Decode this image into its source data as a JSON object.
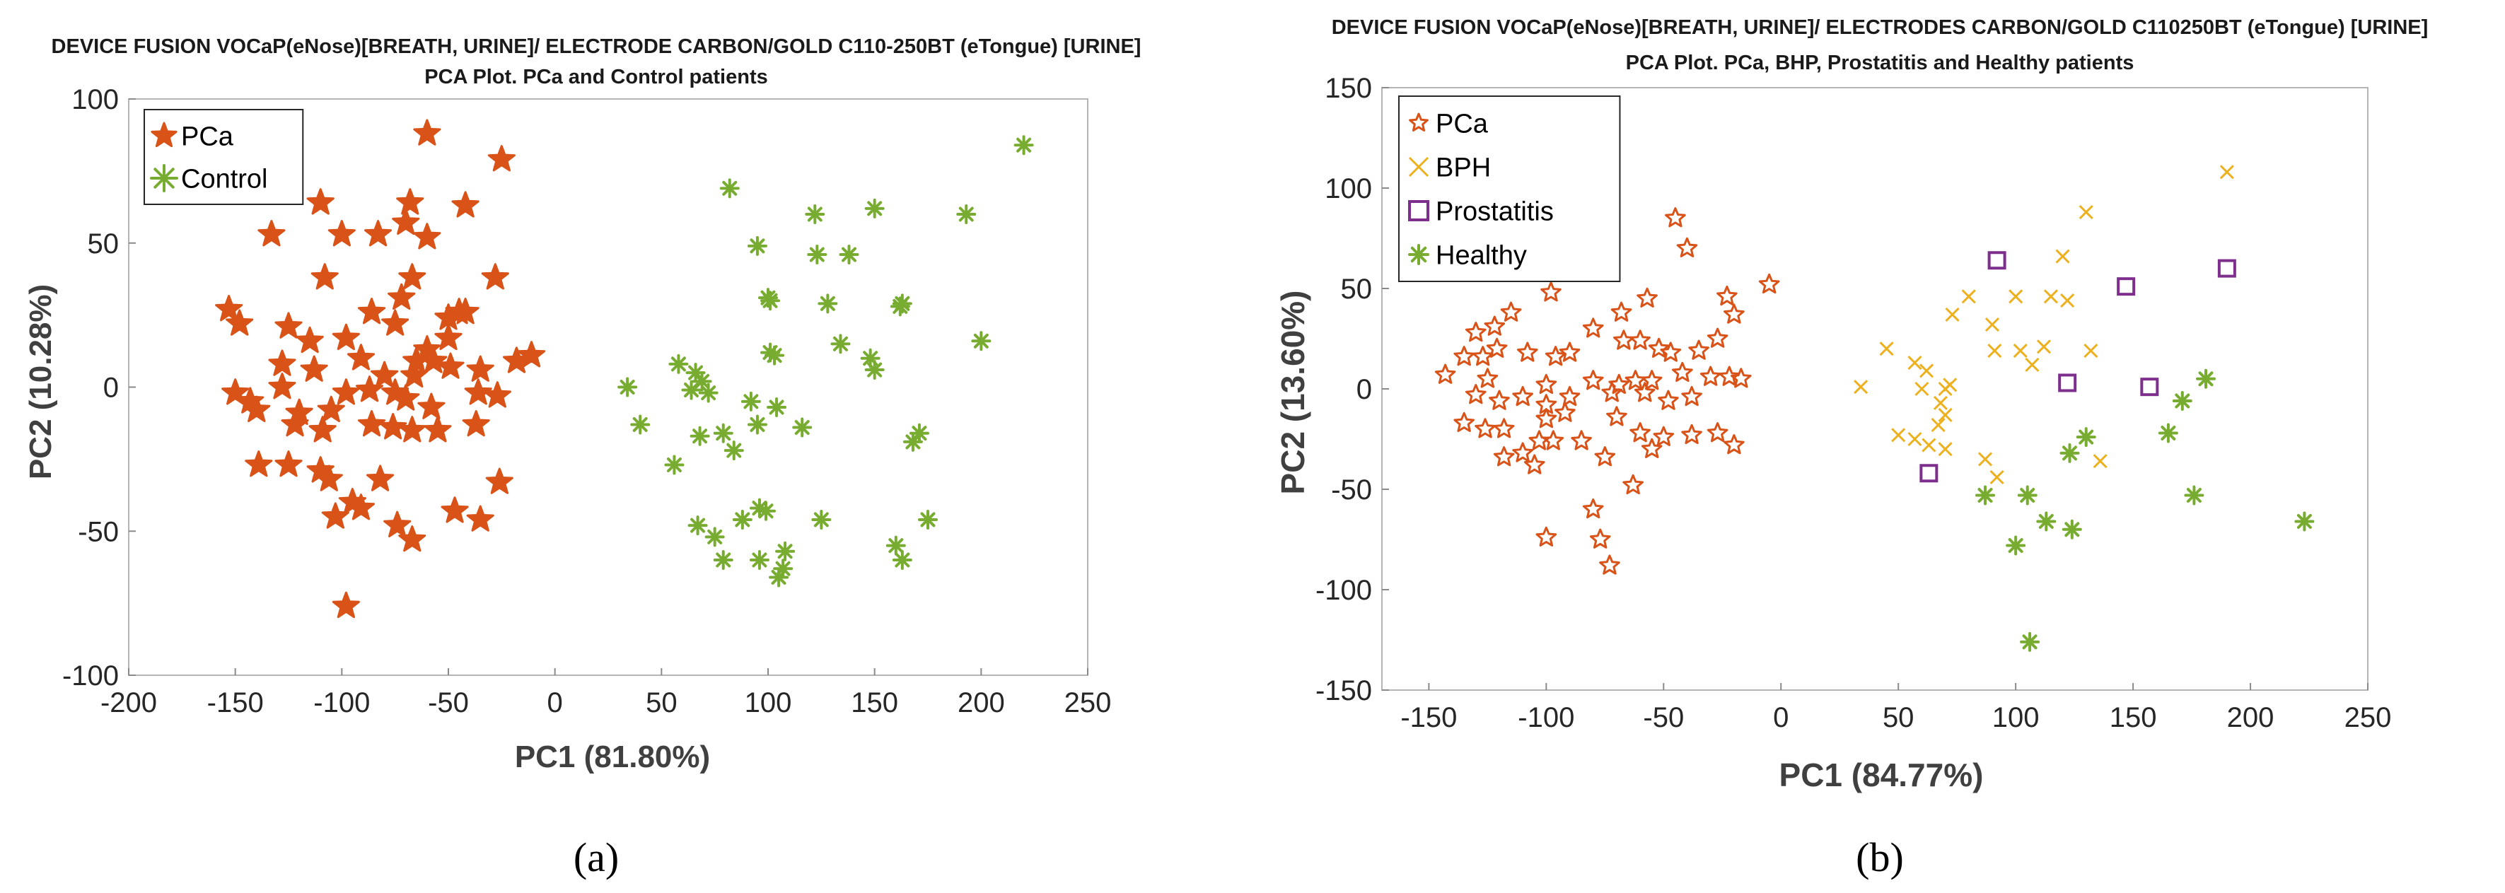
{
  "chart_data": [
    {
      "type": "scatter",
      "title_line1": "DEVICE FUSION VOCaP(eNose)[BREATH, URINE]/ ELECTRODE CARBON/GOLD C110-250BT (eTongue) [URINE]",
      "title_line2": "PCA Plot. PCa and Control patients",
      "xlabel": "PC1 (81.80%)",
      "ylabel": "PC2 (10.28%)",
      "xlim": [
        -200,
        250
      ],
      "ylim": [
        -100,
        100
      ],
      "xticks": [
        -200,
        -150,
        -100,
        -50,
        0,
        50,
        100,
        150,
        200,
        250
      ],
      "yticks": [
        -100,
        -50,
        0,
        50,
        100
      ],
      "legend_position": "top-left",
      "caption": "(a)",
      "series": [
        {
          "name": "PCa",
          "color": "#d95319",
          "marker": "star-filled",
          "points": [
            [
              -60,
              88
            ],
            [
              -25,
              79
            ],
            [
              -133,
              53
            ],
            [
              -110,
              64
            ],
            [
              -68,
              64
            ],
            [
              -70,
              57
            ],
            [
              -60,
              52
            ],
            [
              -42,
              63
            ],
            [
              -100,
              53
            ],
            [
              -83,
              53
            ],
            [
              -67,
              38
            ],
            [
              -108,
              38
            ],
            [
              -72,
              31
            ],
            [
              -86,
              26
            ],
            [
              -28,
              38
            ],
            [
              -153,
              27
            ],
            [
              -148,
              22
            ],
            [
              -125,
              21
            ],
            [
              -115,
              16
            ],
            [
              -98,
              17
            ],
            [
              -45,
              26
            ],
            [
              -42,
              26
            ],
            [
              -50,
              24
            ],
            [
              -75,
              22
            ],
            [
              -50,
              17
            ],
            [
              -60,
              13
            ],
            [
              -65,
              9
            ],
            [
              -57,
              9
            ],
            [
              -18,
              9
            ],
            [
              -11,
              11
            ],
            [
              -128,
              8
            ],
            [
              -113,
              6
            ],
            [
              -91,
              10
            ],
            [
              -80,
              4
            ],
            [
              -66,
              4
            ],
            [
              -49,
              7
            ],
            [
              -35,
              6
            ],
            [
              -150,
              -2
            ],
            [
              -143,
              -5
            ],
            [
              -128,
              0
            ],
            [
              -98,
              -2
            ],
            [
              -87,
              -1
            ],
            [
              -75,
              -2
            ],
            [
              -70,
              -4
            ],
            [
              -58,
              -7
            ],
            [
              -36,
              -2
            ],
            [
              -27,
              -3
            ],
            [
              -140,
              -8
            ],
            [
              -120,
              -9
            ],
            [
              -105,
              -8
            ],
            [
              -86,
              -13
            ],
            [
              -76,
              -14
            ],
            [
              -67,
              -15
            ],
            [
              -55,
              -15
            ],
            [
              -37,
              -13
            ],
            [
              -122,
              -13
            ],
            [
              -109,
              -15
            ],
            [
              -139,
              -27
            ],
            [
              -125,
              -27
            ],
            [
              -110,
              -29
            ],
            [
              -106,
              -32
            ],
            [
              -82,
              -32
            ],
            [
              -26,
              -33
            ],
            [
              -95,
              -40
            ],
            [
              -91,
              -42
            ],
            [
              -103,
              -45
            ],
            [
              -47,
              -43
            ],
            [
              -35,
              -46
            ],
            [
              -74,
              -48
            ],
            [
              -67,
              -53
            ],
            [
              -98,
              -76
            ]
          ]
        },
        {
          "name": "Control",
          "color": "#77ac30",
          "marker": "asterisk",
          "points": [
            [
              220,
              84
            ],
            [
              82,
              69
            ],
            [
              150,
              62
            ],
            [
              122,
              60
            ],
            [
              193,
              60
            ],
            [
              123,
              46
            ],
            [
              95,
              49
            ],
            [
              138,
              46
            ],
            [
              100,
              31
            ],
            [
              101,
              30
            ],
            [
              128,
              29
            ],
            [
              163,
              29
            ],
            [
              162,
              28
            ],
            [
              200,
              16
            ],
            [
              134,
              15
            ],
            [
              101,
              12
            ],
            [
              103,
              11
            ],
            [
              148,
              10
            ],
            [
              150,
              6
            ],
            [
              58,
              8
            ],
            [
              66,
              5
            ],
            [
              69,
              2
            ],
            [
              34,
              0
            ],
            [
              64,
              -1
            ],
            [
              72,
              -2
            ],
            [
              92,
              -5
            ],
            [
              104,
              -7
            ],
            [
              40,
              -13
            ],
            [
              68,
              -17
            ],
            [
              79,
              -16
            ],
            [
              95,
              -13
            ],
            [
              116,
              -14
            ],
            [
              171,
              -16
            ],
            [
              168,
              -19
            ],
            [
              84,
              -22
            ],
            [
              56,
              -27
            ],
            [
              67,
              -48
            ],
            [
              75,
              -52
            ],
            [
              96,
              -42
            ],
            [
              99,
              -43
            ],
            [
              175,
              -46
            ],
            [
              88,
              -46
            ],
            [
              125,
              -46
            ],
            [
              160,
              -55
            ],
            [
              79,
              -60
            ],
            [
              96,
              -60
            ],
            [
              107,
              -63
            ],
            [
              105,
              -66
            ],
            [
              108,
              -57
            ],
            [
              163,
              -60
            ]
          ]
        }
      ]
    },
    {
      "type": "scatter",
      "title_line1": "DEVICE FUSION VOCaP(eNose)[BREATH, URINE]/ ELECTRODES CARBON/GOLD C110250BT (eTongue) [URINE]",
      "title_line2": "PCA Plot. PCa, BHP, Prostatitis and Healthy patients",
      "xlabel": "PC1 (84.77%)",
      "ylabel": "PC2 (13.60%)",
      "xlim": [
        -170,
        250
      ],
      "ylim": [
        -150,
        150
      ],
      "xticks": [
        -150,
        -100,
        -50,
        0,
        50,
        100,
        150,
        200,
        250
      ],
      "yticks": [
        -150,
        -100,
        -50,
        0,
        50,
        100,
        150
      ],
      "legend_position": "top-left",
      "caption": "(b)",
      "series": [
        {
          "name": "PCa",
          "color": "#d95319",
          "marker": "star-open",
          "points": [
            [
              -45,
              85
            ],
            [
              -40,
              70
            ],
            [
              -5,
              52
            ],
            [
              -98,
              48
            ],
            [
              -57,
              45
            ],
            [
              -23,
              46
            ],
            [
              -20,
              37
            ],
            [
              -68,
              38
            ],
            [
              -115,
              38
            ],
            [
              -122,
              31
            ],
            [
              -130,
              28
            ],
            [
              -135,
              16
            ],
            [
              -127,
              16
            ],
            [
              -121,
              20
            ],
            [
              -108,
              18
            ],
            [
              -90,
              18
            ],
            [
              -80,
              30
            ],
            [
              -67,
              24
            ],
            [
              -60,
              24
            ],
            [
              -52,
              20
            ],
            [
              -47,
              18
            ],
            [
              -35,
              19
            ],
            [
              -27,
              25
            ],
            [
              -96,
              16
            ],
            [
              -143,
              7
            ],
            [
              -125,
              5
            ],
            [
              -100,
              2
            ],
            [
              -80,
              4
            ],
            [
              -69,
              2
            ],
            [
              -62,
              4
            ],
            [
              -55,
              4
            ],
            [
              -42,
              8
            ],
            [
              -30,
              6
            ],
            [
              -22,
              6
            ],
            [
              -17,
              5
            ],
            [
              -130,
              -3
            ],
            [
              -120,
              -6
            ],
            [
              -110,
              -4
            ],
            [
              -100,
              -8
            ],
            [
              -90,
              -4
            ],
            [
              -72,
              -2
            ],
            [
              -58,
              -2
            ],
            [
              -48,
              -6
            ],
            [
              -38,
              -4
            ],
            [
              -135,
              -17
            ],
            [
              -126,
              -20
            ],
            [
              -118,
              -20
            ],
            [
              -100,
              -15
            ],
            [
              -92,
              -12
            ],
            [
              -70,
              -14
            ],
            [
              -60,
              -22
            ],
            [
              -50,
              -24
            ],
            [
              -38,
              -23
            ],
            [
              -27,
              -22
            ],
            [
              -20,
              -28
            ],
            [
              -118,
              -34
            ],
            [
              -110,
              -32
            ],
            [
              -103,
              -26
            ],
            [
              -97,
              -26
            ],
            [
              -85,
              -26
            ],
            [
              -75,
              -34
            ],
            [
              -105,
              -38
            ],
            [
              -100,
              -74
            ],
            [
              -80,
              -60
            ],
            [
              -77,
              -75
            ],
            [
              -73,
              -88
            ],
            [
              -63,
              -48
            ],
            [
              -55,
              -30
            ]
          ]
        },
        {
          "name": "BPH",
          "color": "#edb120",
          "marker": "cross",
          "points": [
            [
              190,
              108
            ],
            [
              130,
              88
            ],
            [
              120,
              66
            ],
            [
              115,
              46
            ],
            [
              122,
              44
            ],
            [
              100,
              46
            ],
            [
              80,
              46
            ],
            [
              90,
              32
            ],
            [
              73,
              37
            ],
            [
              45,
              20
            ],
            [
              57,
              13
            ],
            [
              91,
              19
            ],
            [
              102,
              19
            ],
            [
              112,
              21
            ],
            [
              132,
              19
            ],
            [
              62,
              9
            ],
            [
              107,
              12
            ],
            [
              34,
              1
            ],
            [
              60,
              0
            ],
            [
              70,
              0
            ],
            [
              72,
              2
            ],
            [
              68,
              -7
            ],
            [
              50,
              -23
            ],
            [
              70,
              -13
            ],
            [
              67,
              -18
            ],
            [
              63,
              -28
            ],
            [
              57,
              -25
            ],
            [
              70,
              -30
            ],
            [
              87,
              -35
            ],
            [
              92,
              -44
            ],
            [
              136,
              -36
            ]
          ]
        },
        {
          "name": "Prostatitis",
          "color": "#7e2f8e",
          "marker": "square-open",
          "points": [
            [
              92,
              64
            ],
            [
              190,
              60
            ],
            [
              147,
              51
            ],
            [
              122,
              3
            ],
            [
              157,
              1
            ],
            [
              63,
              -42
            ]
          ]
        },
        {
          "name": "Healthy",
          "color": "#77ac30",
          "marker": "asterisk",
          "points": [
            [
              181,
              5
            ],
            [
              171,
              -6
            ],
            [
              165,
              -22
            ],
            [
              130,
              -24
            ],
            [
              123,
              -32
            ],
            [
              105,
              -53
            ],
            [
              87,
              -53
            ],
            [
              113,
              -66
            ],
            [
              176,
              -53
            ],
            [
              124,
              -70
            ],
            [
              100,
              -78
            ],
            [
              223,
              -66
            ],
            [
              106,
              -126
            ]
          ]
        }
      ]
    }
  ]
}
